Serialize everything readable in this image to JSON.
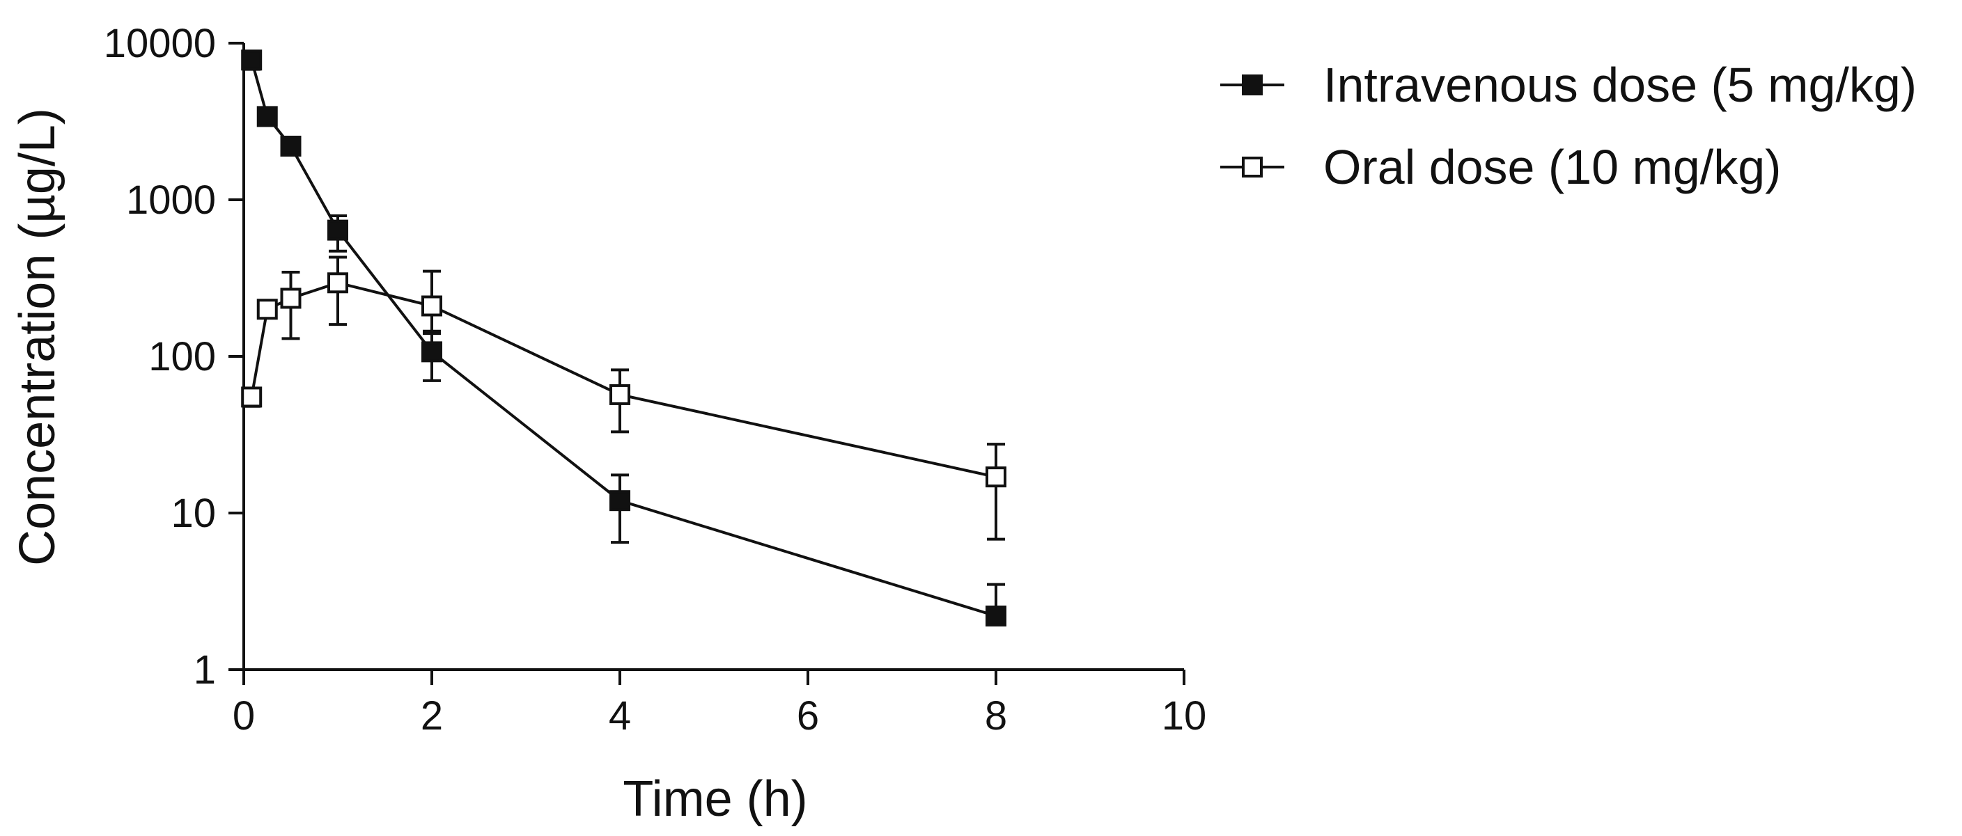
{
  "chart_data": {
    "type": "line",
    "title": "",
    "xlabel": "Time (h)",
    "ylabel": "Concentration (µg/L)",
    "xscale": "linear",
    "yscale": "log",
    "xlim": [
      0,
      10
    ],
    "ylim": [
      1,
      10000
    ],
    "xticks": [
      0,
      2,
      4,
      6,
      8,
      10
    ],
    "xtick_labels": [
      "0",
      "2",
      "4",
      "6",
      "8",
      "10"
    ],
    "yticks": [
      1,
      10,
      100,
      1000,
      10000
    ],
    "ytick_labels": [
      "1",
      "10",
      "100",
      "1000",
      "10000"
    ],
    "grid": false,
    "legend_position": "top-right",
    "series": [
      {
        "name": "Intravenous dose (5 mg/kg)",
        "marker": "filled-square",
        "color": "#111111",
        "x": [
          0.083,
          0.25,
          0.5,
          1,
          2,
          4,
          8
        ],
        "y": [
          7800,
          3400,
          2200,
          640,
          107,
          12,
          2.2
        ],
        "err_low": [
          6800,
          null,
          null,
          470,
          70,
          6.5,
          null
        ],
        "err_high": [
          8600,
          null,
          null,
          790,
          145,
          17.5,
          3.5
        ]
      },
      {
        "name": "Oral dose (10 mg/kg)",
        "marker": "open-square",
        "color": "#111111",
        "x": [
          0.083,
          0.25,
          0.5,
          1,
          2,
          4,
          8
        ],
        "y": [
          55,
          200,
          235,
          295,
          210,
          57,
          17
        ],
        "err_low": [
          48,
          null,
          130,
          160,
          140,
          33,
          6.8
        ],
        "err_high": [
          62,
          null,
          345,
          430,
          350,
          82,
          27.5
        ]
      }
    ]
  }
}
